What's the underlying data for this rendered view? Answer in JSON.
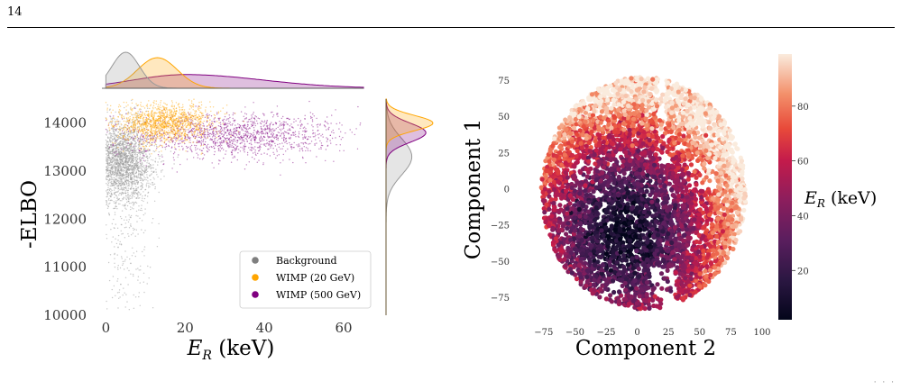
{
  "page": {
    "number": "14",
    "corner_mark": "· · ·"
  },
  "colors": {
    "background": "#999999",
    "wimp20": "#ffa500",
    "wimp500": "#800080"
  },
  "chart_data": [
    {
      "type": "scatter",
      "title": "",
      "xlabel_main": "E",
      "xlabel_sub": "R",
      "xlabel_unit": " (keV)",
      "ylabel": "-ELBO",
      "xlim": [
        -1,
        65
      ],
      "ylim": [
        10000,
        14500
      ],
      "xticks": [
        0,
        20,
        40,
        60
      ],
      "yticks": [
        10000,
        11000,
        12000,
        13000,
        14000
      ],
      "grid": false,
      "legend_position": "lower-right",
      "marginals": "kde",
      "series": [
        {
          "name": "Background",
          "color": "#999999",
          "x_center": 5,
          "x_spread": 3.5,
          "y_center": 13200,
          "y_spread": 420,
          "y_tail_min": 10100
        },
        {
          "name": "WIMP (20 GeV)",
          "color": "#ffa500",
          "x_center": 15,
          "x_spread": 6,
          "y_center": 14000,
          "y_spread": 200
        },
        {
          "name": "WIMP (500 GeV)",
          "color": "#800080",
          "x_center": 32,
          "x_spread": 13,
          "y_center": 13750,
          "y_spread": 230
        }
      ]
    },
    {
      "type": "scatter",
      "title": "",
      "xlabel": "Component 2",
      "ylabel": "Component 1",
      "xlim": [
        -90,
        100
      ],
      "ylim": [
        -90,
        90
      ],
      "xticks": [
        -75,
        -50,
        -25,
        0,
        25,
        50,
        75,
        100
      ],
      "yticks": [
        -75,
        -50,
        -25,
        0,
        25,
        50,
        75
      ],
      "grid": false,
      "colorbar": {
        "label_main": "E",
        "label_sub": "R",
        "label_unit": " (keV)",
        "ticks": [
          20,
          40,
          60,
          80
        ],
        "range": [
          2,
          99
        ],
        "colormap": "rocket"
      }
    }
  ]
}
